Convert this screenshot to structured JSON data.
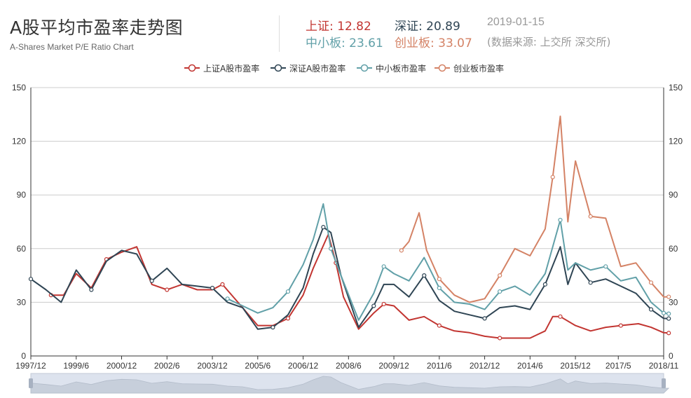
{
  "header": {
    "title": "A股平均市盈率走势图",
    "subtitle": "A-Shares Market P/E Ratio Chart",
    "stats": [
      {
        "label": "上证",
        "value": "12.82",
        "color": "#c23531"
      },
      {
        "label": "深证",
        "value": "20.89",
        "color": "#2f4554"
      },
      {
        "label": "中小板",
        "value": "23.61",
        "color": "#61a0a8"
      },
      {
        "label": "创业板",
        "value": "33.07",
        "color": "#d48265"
      }
    ],
    "date": "2019-01-15",
    "source": "(数据来源: 上交所 深交所)"
  },
  "chart_data": {
    "type": "line",
    "x_ticks": [
      "1997/12",
      "1999/6",
      "2000/12",
      "2002/6",
      "2003/12",
      "2005/6",
      "2006/12",
      "2008/6",
      "2009/12",
      "2011/6",
      "2012/12",
      "2014/6",
      "2015/12",
      "2017/5",
      "2018/11"
    ],
    "ylim": [
      0,
      150
    ],
    "y_ticks": [
      0,
      30,
      60,
      90,
      120,
      150
    ],
    "y_axes": "left-and-right",
    "grid": "horizontal",
    "legend_position": "top",
    "series": [
      {
        "name": "上证A股市盈率",
        "color": "#c23531",
        "points": [
          [
            "1998/8",
            34
          ],
          [
            "1999/1",
            34
          ],
          [
            "1999/6",
            46
          ],
          [
            "1999/12",
            38
          ],
          [
            "2000/6",
            54
          ],
          [
            "2000/12",
            58
          ],
          [
            "2001/6",
            61
          ],
          [
            "2001/12",
            40
          ],
          [
            "2002/6",
            37
          ],
          [
            "2002/12",
            40
          ],
          [
            "2003/6",
            37
          ],
          [
            "2003/12",
            37
          ],
          [
            "2004/4",
            40
          ],
          [
            "2004/12",
            27
          ],
          [
            "2005/6",
            17
          ],
          [
            "2005/12",
            17
          ],
          [
            "2006/6",
            21
          ],
          [
            "2006/12",
            34
          ],
          [
            "2007/4",
            49
          ],
          [
            "2007/10",
            68
          ],
          [
            "2008/1",
            52
          ],
          [
            "2008/4",
            33
          ],
          [
            "2008/10",
            15
          ],
          [
            "2009/4",
            24
          ],
          [
            "2009/8",
            29
          ],
          [
            "2009/12",
            28
          ],
          [
            "2010/6",
            20
          ],
          [
            "2010/12",
            22
          ],
          [
            "2011/6",
            17
          ],
          [
            "2011/12",
            14
          ],
          [
            "2012/6",
            13
          ],
          [
            "2012/12",
            11
          ],
          [
            "2013/6",
            10
          ],
          [
            "2014/6",
            10
          ],
          [
            "2014/12",
            14
          ],
          [
            "2015/3",
            22
          ],
          [
            "2015/6",
            22
          ],
          [
            "2015/12",
            17
          ],
          [
            "2016/6",
            14
          ],
          [
            "2016/12",
            16
          ],
          [
            "2017/6",
            17
          ],
          [
            "2018/1",
            18
          ],
          [
            "2018/6",
            16
          ],
          [
            "2018/11",
            13
          ],
          [
            "2019/1",
            12.82
          ]
        ]
      },
      {
        "name": "深证A股市盈率",
        "color": "#2f4554",
        "points": [
          [
            "1997/12",
            43
          ],
          [
            "1998/6",
            37
          ],
          [
            "1998/12",
            30
          ],
          [
            "1999/6",
            48
          ],
          [
            "1999/12",
            37
          ],
          [
            "2000/6",
            53
          ],
          [
            "2000/12",
            59
          ],
          [
            "2001/6",
            57
          ],
          [
            "2001/12",
            42
          ],
          [
            "2002/6",
            49
          ],
          [
            "2002/12",
            40
          ],
          [
            "2003/6",
            39
          ],
          [
            "2003/12",
            38
          ],
          [
            "2004/6",
            30
          ],
          [
            "2004/12",
            27
          ],
          [
            "2005/6",
            15
          ],
          [
            "2005/12",
            16
          ],
          [
            "2006/6",
            23
          ],
          [
            "2006/12",
            38
          ],
          [
            "2007/4",
            57
          ],
          [
            "2007/8",
            72
          ],
          [
            "2007/11",
            69
          ],
          [
            "2008/3",
            45
          ],
          [
            "2008/10",
            16
          ],
          [
            "2009/4",
            28
          ],
          [
            "2009/8",
            40
          ],
          [
            "2009/12",
            40
          ],
          [
            "2010/6",
            33
          ],
          [
            "2010/12",
            45
          ],
          [
            "2011/6",
            31
          ],
          [
            "2011/12",
            25
          ],
          [
            "2012/6",
            23
          ],
          [
            "2012/12",
            21
          ],
          [
            "2013/6",
            27
          ],
          [
            "2013/12",
            28
          ],
          [
            "2014/6",
            26
          ],
          [
            "2014/12",
            40
          ],
          [
            "2015/6",
            61
          ],
          [
            "2015/9",
            40
          ],
          [
            "2015/12",
            52
          ],
          [
            "2016/6",
            41
          ],
          [
            "2016/12",
            43
          ],
          [
            "2017/6",
            39
          ],
          [
            "2017/12",
            35
          ],
          [
            "2018/6",
            26
          ],
          [
            "2018/11",
            21
          ],
          [
            "2019/1",
            20.89
          ]
        ]
      },
      {
        "name": "中小板市盈率",
        "color": "#61a0a8",
        "points": [
          [
            "2004/6",
            32
          ],
          [
            "2004/12",
            28
          ],
          [
            "2005/6",
            24
          ],
          [
            "2005/12",
            27
          ],
          [
            "2006/6",
            36
          ],
          [
            "2006/12",
            51
          ],
          [
            "2007/4",
            65
          ],
          [
            "2007/8",
            85
          ],
          [
            "2007/11",
            60
          ],
          [
            "2008/3",
            45
          ],
          [
            "2008/10",
            20
          ],
          [
            "2009/4",
            35
          ],
          [
            "2009/8",
            50
          ],
          [
            "2009/12",
            46
          ],
          [
            "2010/6",
            42
          ],
          [
            "2010/12",
            55
          ],
          [
            "2011/6",
            38
          ],
          [
            "2011/12",
            30
          ],
          [
            "2012/6",
            29
          ],
          [
            "2012/12",
            26
          ],
          [
            "2013/6",
            36
          ],
          [
            "2013/12",
            39
          ],
          [
            "2014/6",
            34
          ],
          [
            "2014/12",
            46
          ],
          [
            "2015/6",
            76
          ],
          [
            "2015/9",
            48
          ],
          [
            "2015/12",
            52
          ],
          [
            "2016/6",
            48
          ],
          [
            "2016/12",
            50
          ],
          [
            "2017/6",
            42
          ],
          [
            "2017/12",
            44
          ],
          [
            "2018/6",
            30
          ],
          [
            "2018/11",
            24
          ],
          [
            "2019/1",
            23.61
          ]
        ]
      },
      {
        "name": "创业板市盈率",
        "color": "#d48265",
        "points": [
          [
            "2010/3",
            59
          ],
          [
            "2010/6",
            64
          ],
          [
            "2010/10",
            80
          ],
          [
            "2011/1",
            59
          ],
          [
            "2011/6",
            43
          ],
          [
            "2011/12",
            34
          ],
          [
            "2012/6",
            30
          ],
          [
            "2012/12",
            32
          ],
          [
            "2013/6",
            45
          ],
          [
            "2013/12",
            60
          ],
          [
            "2014/6",
            56
          ],
          [
            "2014/12",
            71
          ],
          [
            "2015/3",
            100
          ],
          [
            "2015/6",
            134
          ],
          [
            "2015/9",
            75
          ],
          [
            "2015/12",
            109
          ],
          [
            "2016/6",
            78
          ],
          [
            "2016/12",
            77
          ],
          [
            "2017/6",
            50
          ],
          [
            "2017/12",
            52
          ],
          [
            "2018/6",
            41
          ],
          [
            "2018/11",
            33
          ],
          [
            "2019/1",
            33.07
          ]
        ]
      }
    ]
  }
}
